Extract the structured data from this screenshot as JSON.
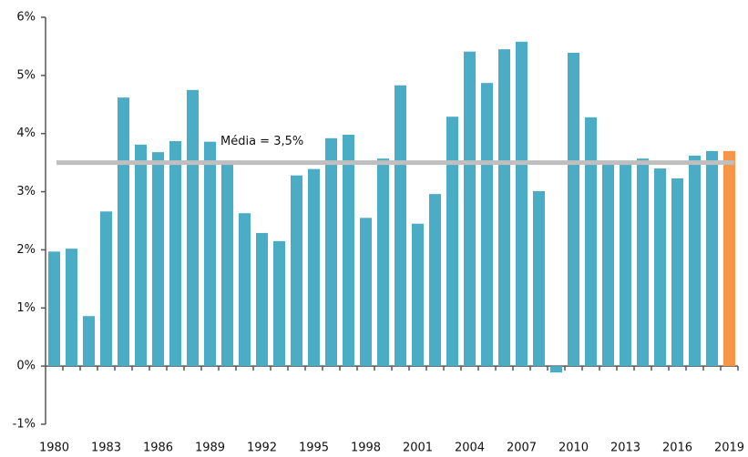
{
  "chart_data": {
    "type": "bar",
    "categories": [
      "1980",
      null,
      null,
      "1983",
      null,
      null,
      "1986",
      null,
      null,
      "1989",
      null,
      null,
      "1992",
      null,
      null,
      "1995",
      null,
      null,
      "1998",
      null,
      null,
      "2001",
      null,
      null,
      "2004",
      null,
      null,
      "2007",
      null,
      null,
      "2010",
      null,
      null,
      "2013",
      null,
      null,
      "2016",
      null,
      null,
      "2019"
    ],
    "values": [
      1.97,
      2.02,
      0.86,
      2.66,
      4.62,
      3.81,
      3.68,
      3.87,
      4.75,
      3.86,
      3.48,
      2.63,
      2.29,
      2.15,
      3.28,
      3.39,
      3.92,
      3.98,
      2.55,
      3.57,
      4.83,
      2.45,
      2.96,
      4.29,
      5.41,
      4.87,
      5.45,
      5.58,
      3.01,
      -0.11,
      5.39,
      4.28,
      3.51,
      3.48,
      3.57,
      3.4,
      3.23,
      3.62,
      3.7,
      3.7
    ],
    "colors": [
      "#4bacc6",
      "#4bacc6",
      "#4bacc6",
      "#4bacc6",
      "#4bacc6",
      "#4bacc6",
      "#4bacc6",
      "#4bacc6",
      "#4bacc6",
      "#4bacc6",
      "#4bacc6",
      "#4bacc6",
      "#4bacc6",
      "#4bacc6",
      "#4bacc6",
      "#4bacc6",
      "#4bacc6",
      "#4bacc6",
      "#4bacc6",
      "#4bacc6",
      "#4bacc6",
      "#4bacc6",
      "#4bacc6",
      "#4bacc6",
      "#4bacc6",
      "#4bacc6",
      "#4bacc6",
      "#4bacc6",
      "#4bacc6",
      "#4bacc6",
      "#4bacc6",
      "#4bacc6",
      "#4bacc6",
      "#4bacc6",
      "#4bacc6",
      "#4bacc6",
      "#4bacc6",
      "#4bacc6",
      "#4bacc6",
      "#f79646"
    ],
    "average": 3.5,
    "average_color": "#bfbfbf",
    "annotation": "Média = 3,5%",
    "ylim": [
      -1,
      6
    ],
    "yticks": [
      {
        "value": -1,
        "label": "-1%"
      },
      {
        "value": 0,
        "label": "0%"
      },
      {
        "value": 1,
        "label": "1%"
      },
      {
        "value": 2,
        "label": "2%"
      },
      {
        "value": 3,
        "label": "3%"
      },
      {
        "value": 4,
        "label": "4%"
      },
      {
        "value": 5,
        "label": "5%"
      },
      {
        "value": 6,
        "label": "6%"
      }
    ],
    "grid": false
  }
}
